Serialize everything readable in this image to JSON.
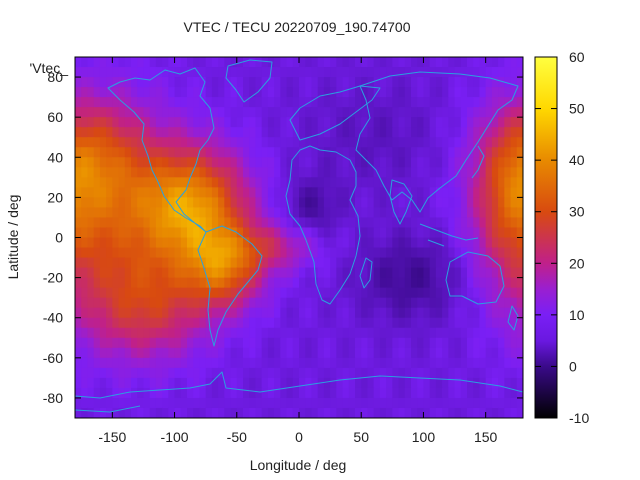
{
  "chart_data": {
    "type": "heatmap",
    "title": "VTEC / TECU 20220709_190.74700",
    "xlabel": "Longitude / deg",
    "ylabel": "Latitude / deg",
    "key_label": "'Vtec_",
    "xlim": [
      -180,
      180
    ],
    "ylim": [
      -90,
      90
    ],
    "x_ticks": [
      -150,
      -100,
      -50,
      0,
      50,
      100,
      150
    ],
    "y_ticks": [
      -80,
      -60,
      -40,
      -20,
      0,
      20,
      40,
      60,
      80
    ],
    "colorbar": {
      "range": [
        -10,
        60
      ],
      "ticks": [
        -10,
        0,
        10,
        20,
        30,
        40,
        50,
        60
      ],
      "colormap": [
        "#000000",
        "#3a0a8a",
        "#7a1ff5",
        "#9a1fd0",
        "#c0208a",
        "#d84a10",
        "#e88a00",
        "#ffd800",
        "#ffff40"
      ]
    },
    "coastline_color": "#2aa0e0",
    "description": "Global vertical TEC map: highest values (~35-45 TECU) over Central/South America and the eastern Pacific, moderate (20-30 TECU) over the Pacific; lowest values (~0-5 TECU) over the Indian Ocean near 90E, 20S and over central Africa; broad background of 5-10 TECU elsewhere.",
    "grid": false,
    "legend": "none"
  }
}
